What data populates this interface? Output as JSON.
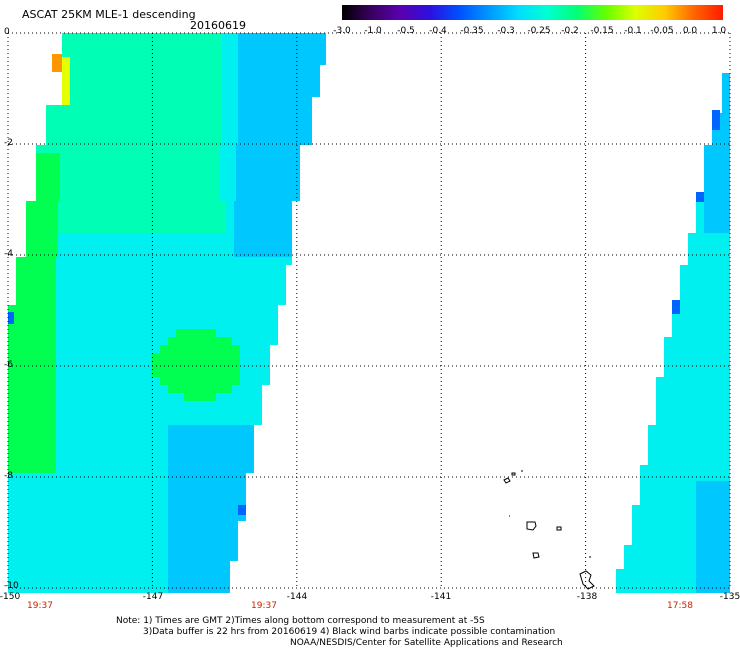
{
  "title": "ASCAT 25KM MLE-1 descending",
  "date": "20160619",
  "colorbar": {
    "labels": [
      "-3.0",
      "-1.0",
      "-0.5",
      "-0.4",
      "-0.35",
      "-0.3",
      "-0.25",
      "-0.2",
      "-0.15",
      "-0.1",
      "-0.05",
      "0.0",
      "1.0"
    ],
    "colors": [
      "#000000",
      "#3a0060",
      "#5a00b0",
      "#2c10e0",
      "#0050ff",
      "#0096ff",
      "#00dcff",
      "#00ffd2",
      "#00ff78",
      "#64ff00",
      "#dcff00",
      "#ffcc00",
      "#ff6600",
      "#ff1a00"
    ]
  },
  "axes": {
    "lat_labels": [
      "0",
      "-2",
      "-4",
      "-6",
      "-8",
      "-10"
    ],
    "lon_labels": [
      "-150",
      "-147",
      "-144",
      "-141",
      "-138",
      "-135"
    ],
    "lat_range": [
      -10,
      0
    ],
    "lon_range": [
      -150,
      -135
    ],
    "grid": "dotted"
  },
  "pass_times": [
    "19:37",
    "19:37",
    "17:58"
  ],
  "notes": [
    "Note: 1) Times are GMT 2)Times along bottom correspond to measurement at -5S",
    "3)Data buffer is 22 hrs from 20160619 4) Black wind barbs indicate possible contamination",
    "NOAA/NESDIS/Center for Satellite Applications and Research"
  ],
  "swath_colors": {
    "cyan": "#00f0f0",
    "aqua_green": "#00ffb4",
    "green": "#00ff50",
    "blue_cyan": "#00c8ff",
    "blue": "#0064ff",
    "yellow": "#e6ff00",
    "orange": "#ff9600"
  }
}
